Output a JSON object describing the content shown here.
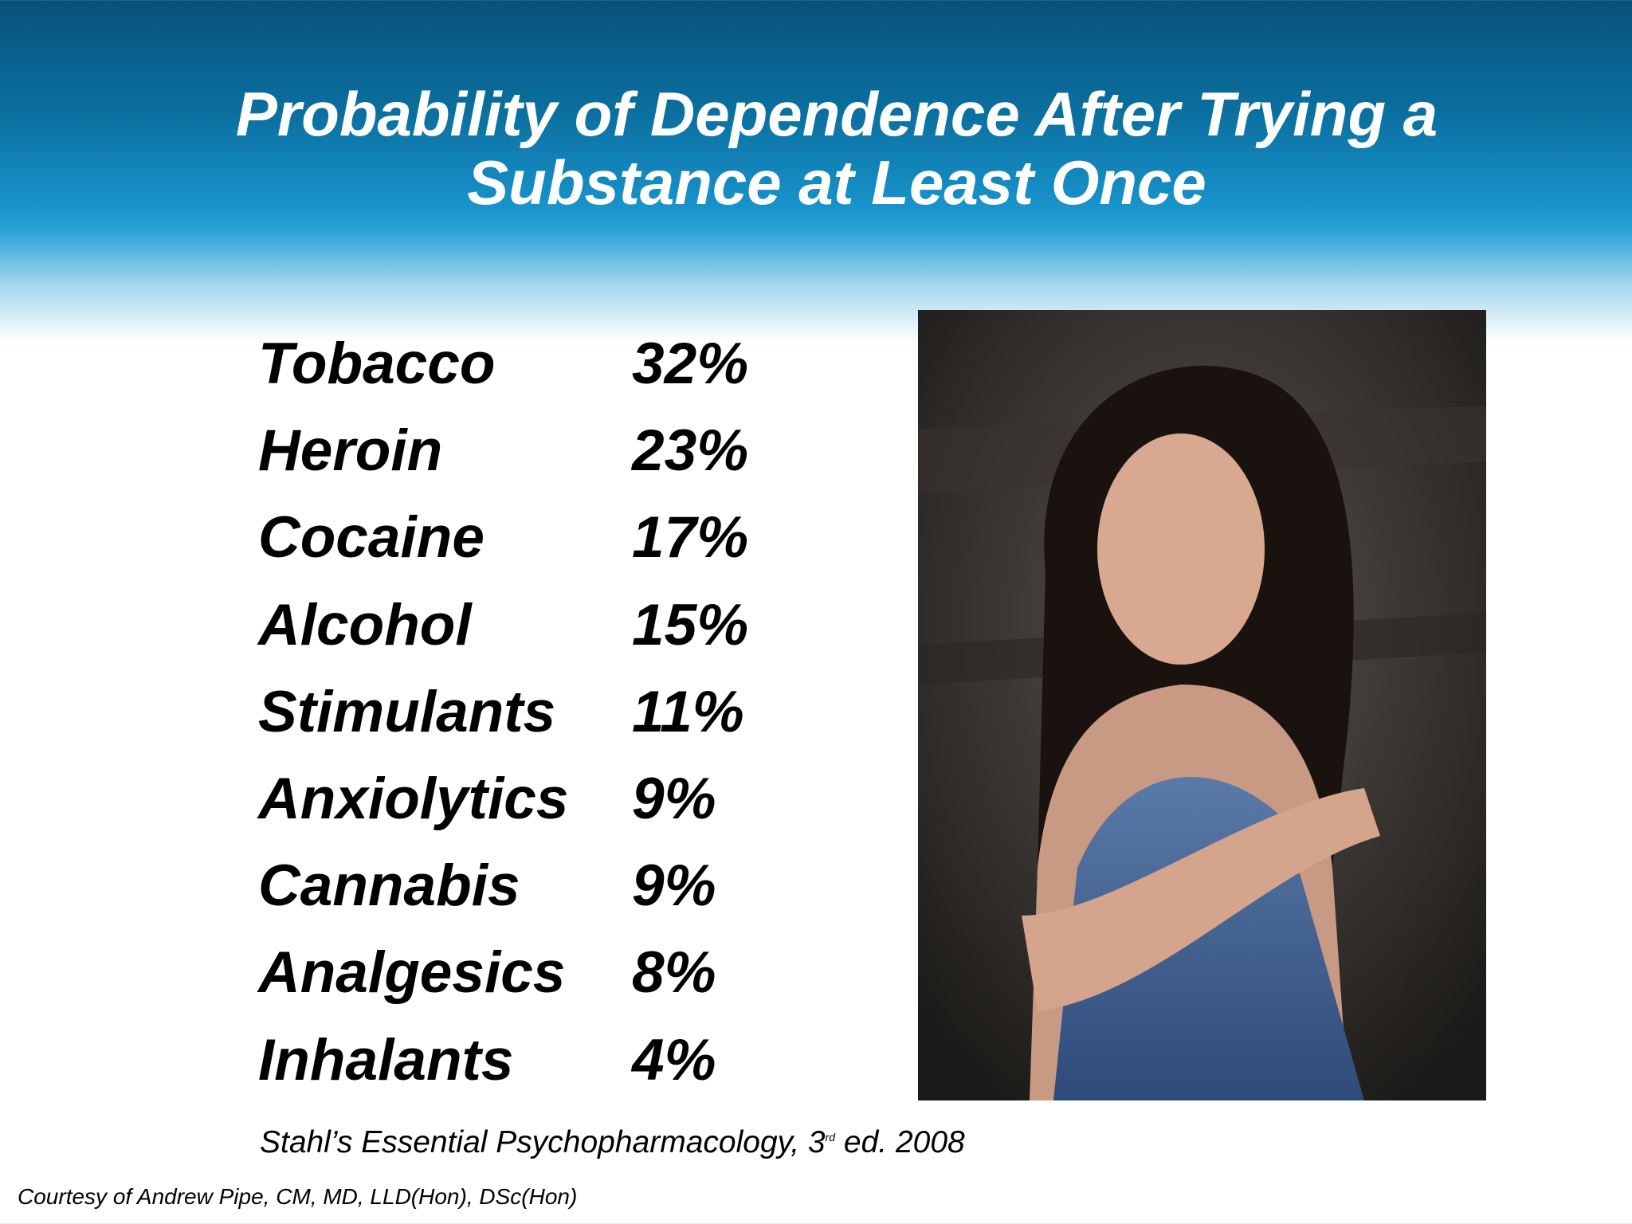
{
  "header": {
    "title_lines": [
      "Probability of Dependence After Trying a",
      "Substance at Least Once"
    ]
  },
  "table": {
    "rows": [
      [
        "Tobacco",
        "32%"
      ],
      [
        "Heroin",
        "23%"
      ],
      [
        "Cocaine",
        "17%"
      ],
      [
        "Alcohol",
        "15%"
      ],
      [
        "Stimulants",
        "11%"
      ],
      [
        "Anxiolytics",
        "9%"
      ],
      [
        "Cannabis",
        "9%"
      ],
      [
        "Analgesics",
        "8%"
      ],
      [
        "Inhalants",
        "4%"
      ]
    ]
  },
  "citation": {
    "before": "Stahl’s Essential Psychopharmacology, 3",
    "superscript": "rd",
    "after": " ed. 2008"
  },
  "footer": {
    "courtesy": "Courtesy of Andrew Pipe, CM, MD, LLD(Hon), DSc(Hon)"
  }
}
